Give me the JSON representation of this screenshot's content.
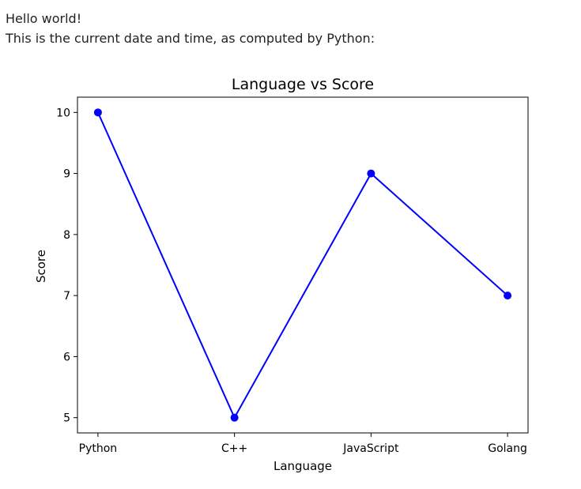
{
  "intro": {
    "line1": "Hello world!",
    "line2": "This is the current date and time, as computed by Python:"
  },
  "chart_data": {
    "type": "line",
    "title": "Language vs Score",
    "xlabel": "Language",
    "ylabel": "Score",
    "categories": [
      "Python",
      "C++",
      "JavaScript",
      "Golang"
    ],
    "series": [
      {
        "values": [
          10,
          5,
          9,
          7
        ],
        "color": "#0000ff",
        "marker": "circle"
      }
    ],
    "ylim": [
      4.75,
      10.25
    ],
    "yticks": [
      5,
      6,
      7,
      8,
      9,
      10
    ],
    "grid": false,
    "legend": "none"
  }
}
